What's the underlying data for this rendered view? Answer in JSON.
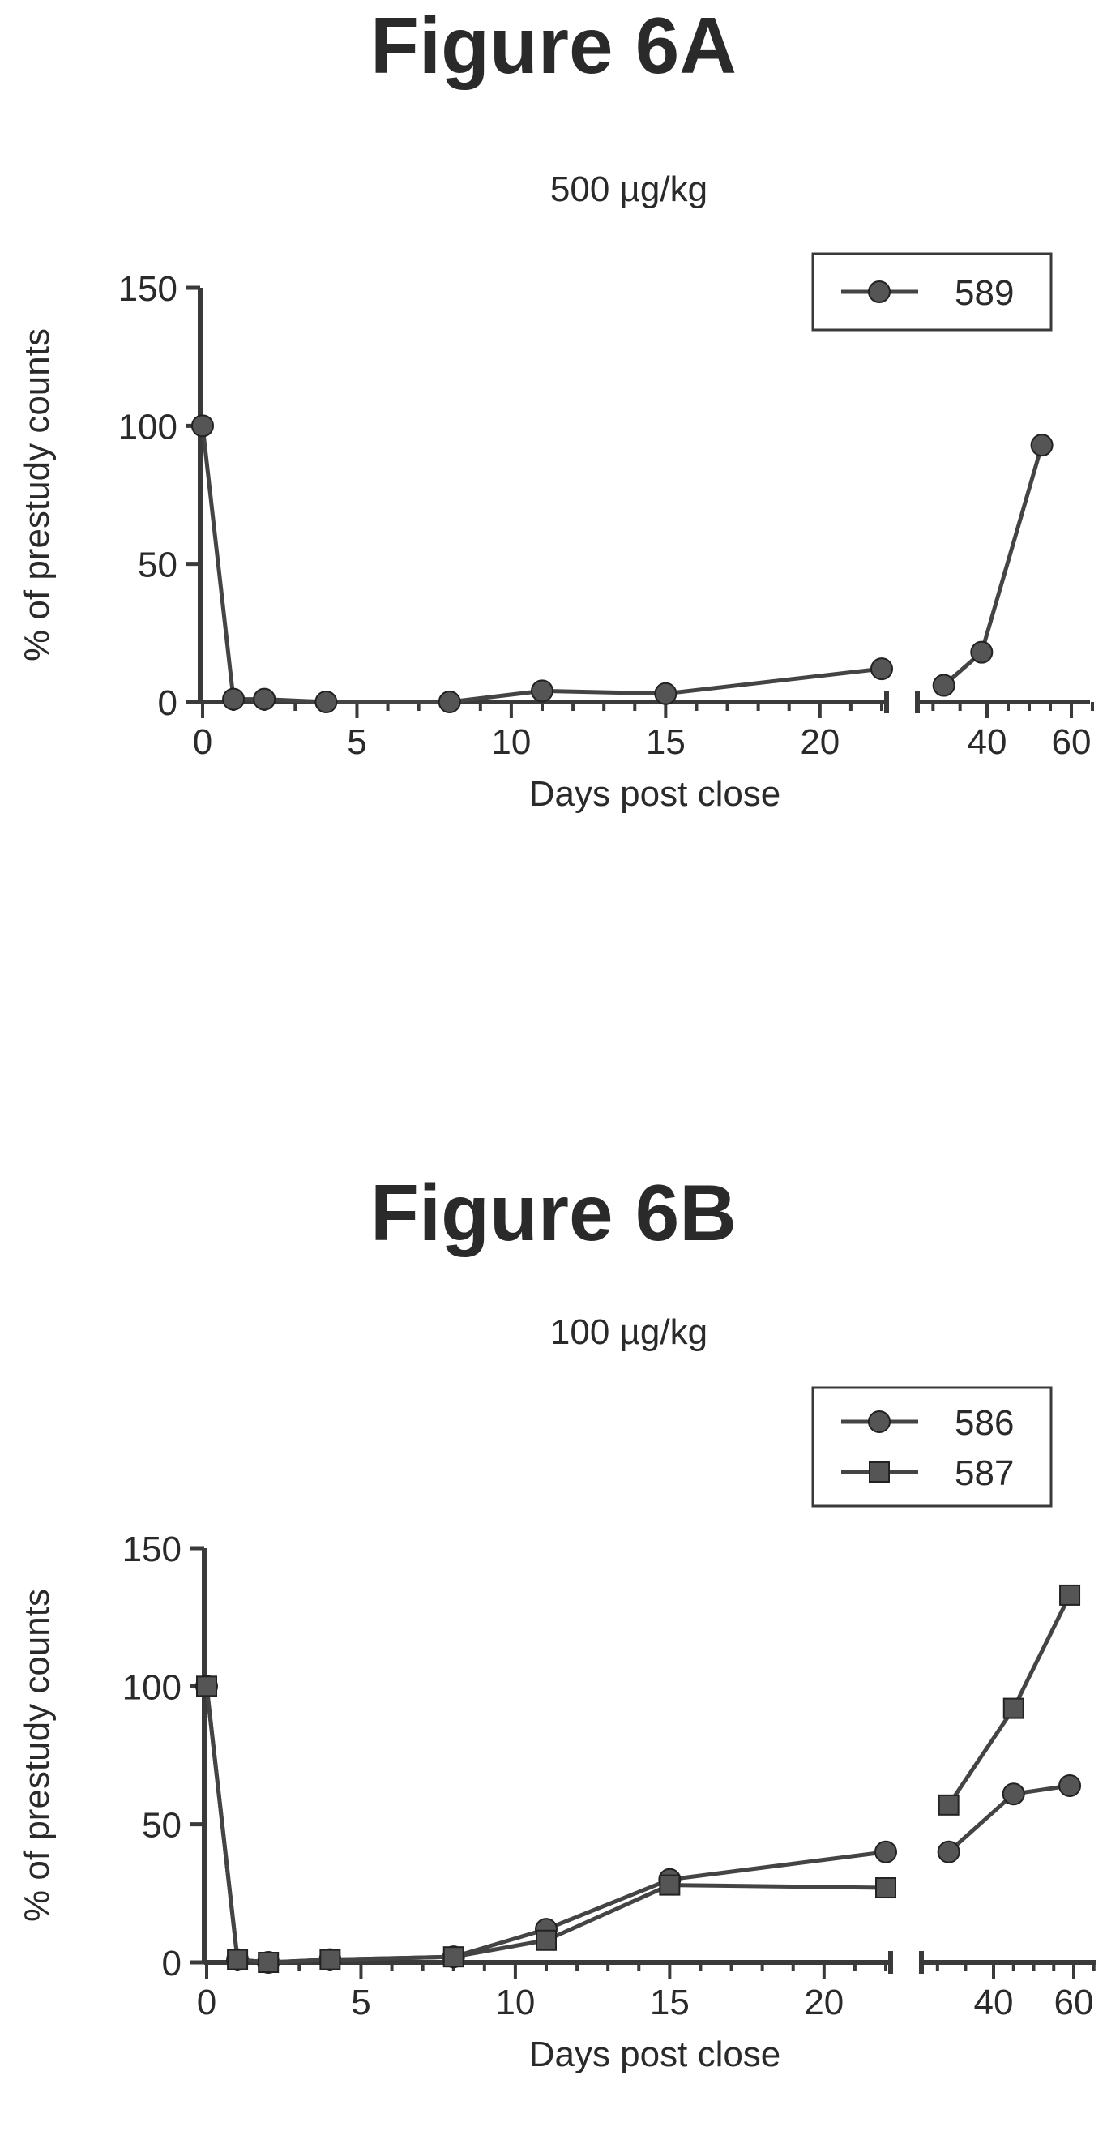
{
  "figures": [
    {
      "title": "Figure 6A",
      "chart_data": {
        "type": "line",
        "title": "500 µg/kg",
        "xlabel": "Days post close",
        "ylabel": "% of prestudy counts",
        "ylim": [
          0,
          150
        ],
        "yticks": [
          0,
          50,
          100,
          150
        ],
        "x_segments": [
          {
            "range": [
              0,
              22
            ],
            "ticks": [
              0,
              5,
              10,
              15,
              20
            ]
          },
          {
            "range": [
              28,
              65
            ],
            "ticks": [
              40,
              60
            ]
          }
        ],
        "legend_position": "top-right",
        "series": [
          {
            "name": "589",
            "marker": "circle",
            "x": [
              0,
              1,
              2,
              4,
              8,
              11,
              15,
              22,
              32,
              39,
              53
            ],
            "y": [
              100,
              1,
              1,
              0,
              0,
              4,
              3,
              12,
              6,
              18,
              93
            ]
          }
        ]
      }
    },
    {
      "title": "Figure 6B",
      "chart_data": {
        "type": "line",
        "title": "100 µg/kg",
        "xlabel": "Days post close",
        "ylabel": "% of prestudy counts",
        "ylim": [
          0,
          150
        ],
        "yticks": [
          0,
          50,
          100,
          150
        ],
        "x_segments": [
          {
            "range": [
              0,
              22
            ],
            "ticks": [
              0,
              5,
              10,
              15,
              20
            ]
          },
          {
            "range": [
              28,
              65
            ],
            "ticks": [
              40,
              60
            ]
          }
        ],
        "legend_position": "top-right",
        "series": [
          {
            "name": "586",
            "marker": "circle",
            "x": [
              0,
              1,
              2,
              4,
              8,
              11,
              15,
              22,
              32,
              45,
              59
            ],
            "y": [
              100,
              1,
              0,
              1,
              2,
              12,
              30,
              40,
              40,
              61,
              64
            ]
          },
          {
            "name": "587",
            "marker": "square",
            "x": [
              0,
              1,
              2,
              4,
              8,
              11,
              15,
              22,
              32,
              45,
              59
            ],
            "y": [
              100,
              1,
              0,
              1,
              2,
              8,
              28,
              27,
              57,
              92,
              133
            ]
          }
        ]
      }
    }
  ]
}
